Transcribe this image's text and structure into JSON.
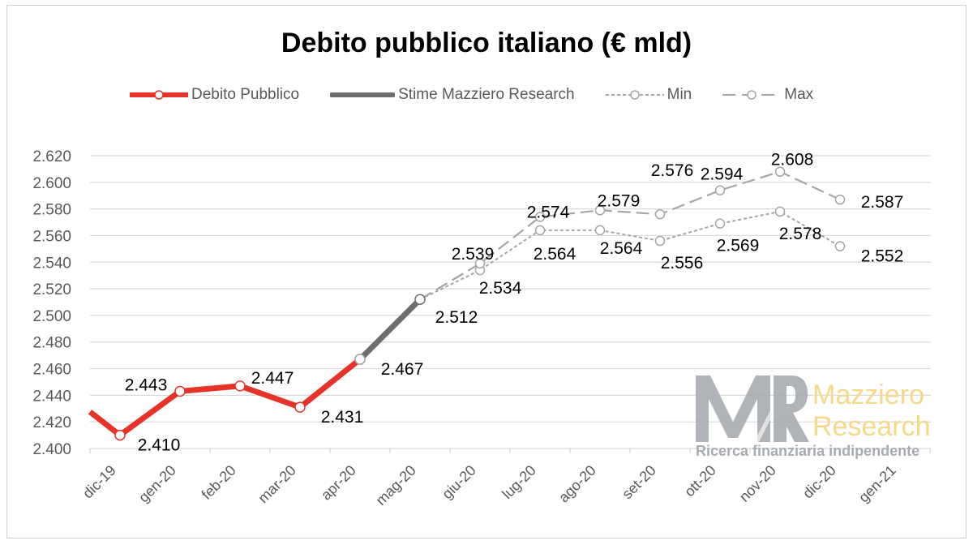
{
  "chart_data": {
    "type": "line",
    "title": "Debito pubblico italiano (€ mld)",
    "categories": [
      "dic-19",
      "gen-20",
      "feb-20",
      "mar-20",
      "apr-20",
      "mag-20",
      "giu-20",
      "lug-20",
      "ago-20",
      "set-20",
      "ott-20",
      "nov-20",
      "dic-20",
      "gen-21"
    ],
    "yticks": [
      "2.400",
      "2.420",
      "2.440",
      "2.460",
      "2.480",
      "2.500",
      "2.520",
      "2.540",
      "2.560",
      "2.580",
      "2.600",
      "2.620"
    ],
    "ylim": [
      2.4,
      2.62
    ],
    "grid": true,
    "legend_position": "top",
    "lead_in_value": 2.445,
    "series": [
      {
        "name": "Debito Pubblico",
        "color": "#e63329",
        "style": "solid",
        "values": [
          2.41,
          2.443,
          2.447,
          2.431,
          2.467,
          null,
          null,
          null,
          null,
          null,
          null,
          null,
          null,
          null
        ],
        "labels": [
          "2.410",
          "2.443",
          "2.447",
          "2.431",
          "2.467"
        ]
      },
      {
        "name": "Stime Mazziero Research",
        "color": "#6e6e6e",
        "style": "solid",
        "values": [
          null,
          null,
          null,
          null,
          2.467,
          2.512,
          null,
          null,
          null,
          null,
          null,
          null,
          null,
          null
        ],
        "labels": [
          "2.512"
        ]
      },
      {
        "name": "Min",
        "color": "#a6a6a6",
        "style": "dotted",
        "values": [
          null,
          null,
          null,
          null,
          null,
          2.512,
          2.534,
          2.564,
          2.564,
          2.556,
          2.569,
          2.578,
          2.552,
          null
        ],
        "labels": [
          "2.534",
          "2.564",
          "2.564",
          "2.556",
          "2.569",
          "2.578",
          "2.552"
        ]
      },
      {
        "name": "Max",
        "color": "#a6a6a6",
        "style": "dashed",
        "values": [
          null,
          null,
          null,
          null,
          null,
          2.512,
          2.539,
          2.574,
          2.579,
          2.576,
          2.594,
          2.608,
          2.587,
          null
        ],
        "labels": [
          "2.539",
          "2.574",
          "2.579",
          "2.576",
          "2.594",
          "2.608",
          "2.587"
        ]
      }
    ]
  },
  "watermark": {
    "mark": "MR",
    "name_line1": "Mazziero",
    "name_line2": "Research",
    "tagline": "Ricerca finanziaria indipendente"
  }
}
